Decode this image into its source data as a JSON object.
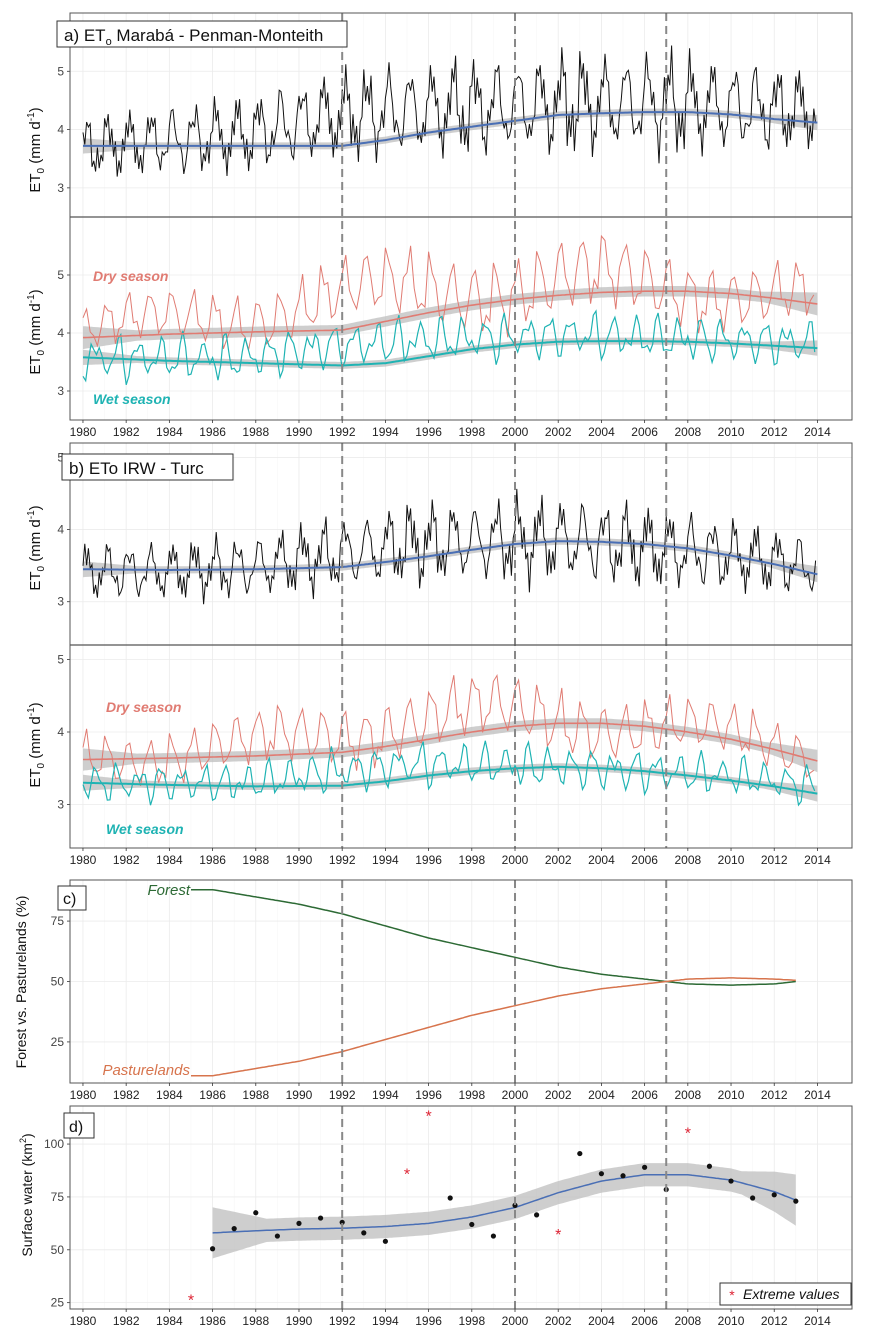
{
  "colors": {
    "obs": "#111111",
    "trend": "#4a6fb5",
    "dry": "#e07b72",
    "wet": "#1fb3b3",
    "band": "#bdbdbd",
    "forest": "#2d6a35",
    "pasture": "#d7744d",
    "extreme": "#dd2233",
    "vline": "#888888",
    "grid": "#ebebeb"
  },
  "chart_data": [
    {
      "id": "a_top",
      "type": "line",
      "label": "a) ET",
      "label_sub": "o",
      "label_rest": " Marabá - Penman-Monteith",
      "ylabel": "ET",
      "ylabel_sub": "0",
      "ylabel_unit": " (mm d",
      "ylabel_sup": "-1",
      "ylabel_close": ")",
      "ylim": [
        2.5,
        6.0
      ],
      "yticks": [
        "3",
        "4",
        "5"
      ],
      "series": [
        {
          "name": "ETo",
          "pattern": {
            "base": [
              3.6,
              3.7,
              3.8,
              4.1,
              4.2,
              4.25,
              4.3,
              4.3,
              4.25,
              4.2
            ],
            "amp": [
              0.8,
              0.9,
              1.0,
              1.1,
              1.2,
              1.25,
              1.3,
              1.3,
              1.2,
              1.0
            ]
          }
        },
        {
          "name": "LOESS trend",
          "points": [
            [
              1980,
              3.72
            ],
            [
              1984,
              3.72
            ],
            [
              1988,
              3.72
            ],
            [
              1992,
              3.72
            ],
            [
              1994,
              3.82
            ],
            [
              1996,
              3.95
            ],
            [
              1998,
              4.05
            ],
            [
              2000,
              4.15
            ],
            [
              2002,
              4.25
            ],
            [
              2004,
              4.28
            ],
            [
              2006,
              4.3
            ],
            [
              2008,
              4.3
            ],
            [
              2010,
              4.26
            ],
            [
              2012,
              4.18
            ],
            [
              2014,
              4.12
            ]
          ]
        }
      ]
    },
    {
      "id": "a_bottom",
      "type": "line",
      "ylim": [
        2.5,
        6.0
      ],
      "yticks": [
        "3",
        "4",
        "5"
      ],
      "annotations": [
        "Dry season",
        "Wet season"
      ],
      "series": [
        {
          "name": "Dry season",
          "pattern": {
            "base": [
              4.0,
              4.1,
              4.2,
              4.5,
              4.6,
              4.7,
              4.75,
              4.7,
              4.65,
              4.5
            ],
            "amp": [
              0.7,
              0.8,
              0.9,
              1.0,
              1.1,
              1.2,
              1.2,
              1.1,
              1.0,
              0.9
            ]
          }
        },
        {
          "name": "Dry trend",
          "points": [
            [
              1980,
              3.92
            ],
            [
              1984,
              3.98
            ],
            [
              1988,
              4.02
            ],
            [
              1992,
              4.05
            ],
            [
              1994,
              4.2
            ],
            [
              1996,
              4.35
            ],
            [
              1998,
              4.48
            ],
            [
              2000,
              4.58
            ],
            [
              2002,
              4.65
            ],
            [
              2004,
              4.7
            ],
            [
              2006,
              4.72
            ],
            [
              2008,
              4.72
            ],
            [
              2010,
              4.68
            ],
            [
              2012,
              4.6
            ],
            [
              2014,
              4.5
            ]
          ]
        },
        {
          "name": "Wet season",
          "pattern": {
            "base": [
              3.5,
              3.5,
              3.5,
              3.7,
              3.8,
              3.85,
              3.9,
              3.85,
              3.8,
              3.75
            ],
            "amp": [
              0.6,
              0.6,
              0.6,
              0.6,
              0.6,
              0.6,
              0.6,
              0.6,
              0.6,
              0.6
            ]
          }
        },
        {
          "name": "Wet trend",
          "points": [
            [
              1980,
              3.58
            ],
            [
              1984,
              3.52
            ],
            [
              1988,
              3.48
            ],
            [
              1992,
              3.44
            ],
            [
              1994,
              3.48
            ],
            [
              1996,
              3.6
            ],
            [
              1998,
              3.72
            ],
            [
              2000,
              3.8
            ],
            [
              2002,
              3.85
            ],
            [
              2004,
              3.86
            ],
            [
              2006,
              3.86
            ],
            [
              2008,
              3.85
            ],
            [
              2010,
              3.82
            ],
            [
              2012,
              3.78
            ],
            [
              2014,
              3.74
            ]
          ]
        }
      ]
    },
    {
      "id": "b_top",
      "type": "line",
      "label": "b) ETo IRW - Turc",
      "ylabel": "ET",
      "ylabel_sub": "0",
      "ylabel_unit": " (mm d",
      "ylabel_sup": "-1",
      "ylabel_close": ")",
      "ylim": [
        2.4,
        5.2
      ],
      "yticks": [
        "3",
        "4",
        "5"
      ],
      "series": [
        {
          "name": "ETo",
          "pattern": {
            "base": [
              3.35,
              3.35,
              3.4,
              3.55,
              3.7,
              3.75,
              3.75,
              3.65,
              3.55,
              3.4
            ],
            "amp": [
              0.6,
              0.6,
              0.65,
              0.75,
              0.85,
              0.85,
              0.9,
              0.85,
              0.75,
              0.6
            ]
          }
        },
        {
          "name": "LOESS trend",
          "points": [
            [
              1980,
              3.45
            ],
            [
              1984,
              3.44
            ],
            [
              1988,
              3.45
            ],
            [
              1992,
              3.48
            ],
            [
              1994,
              3.55
            ],
            [
              1996,
              3.63
            ],
            [
              1998,
              3.72
            ],
            [
              2000,
              3.8
            ],
            [
              2002,
              3.84
            ],
            [
              2004,
              3.83
            ],
            [
              2006,
              3.8
            ],
            [
              2008,
              3.74
            ],
            [
              2010,
              3.64
            ],
            [
              2012,
              3.52
            ],
            [
              2014,
              3.38
            ]
          ]
        }
      ]
    },
    {
      "id": "b_bottom",
      "type": "line",
      "ylim": [
        2.4,
        5.2
      ],
      "yticks": [
        "3",
        "4",
        "5"
      ],
      "annotations": [
        "Dry season",
        "Wet season"
      ],
      "series": [
        {
          "name": "Dry season",
          "pattern": {
            "base": [
              3.6,
              3.65,
              3.7,
              3.9,
              4.1,
              4.15,
              4.1,
              4.0,
              3.85,
              3.65
            ],
            "amp": [
              0.6,
              0.65,
              0.7,
              0.75,
              0.8,
              0.8,
              0.8,
              0.7,
              0.65,
              0.6
            ]
          }
        },
        {
          "name": "Dry trend",
          "points": [
            [
              1980,
              3.62
            ],
            [
              1984,
              3.64
            ],
            [
              1988,
              3.67
            ],
            [
              1992,
              3.72
            ],
            [
              1994,
              3.8
            ],
            [
              1996,
              3.9
            ],
            [
              1998,
              4.0
            ],
            [
              2000,
              4.08
            ],
            [
              2002,
              4.12
            ],
            [
              2004,
              4.12
            ],
            [
              2006,
              4.08
            ],
            [
              2008,
              4.0
            ],
            [
              2010,
              3.9
            ],
            [
              2012,
              3.76
            ],
            [
              2014,
              3.6
            ]
          ]
        },
        {
          "name": "Wet season",
          "pattern": {
            "base": [
              3.25,
              3.25,
              3.25,
              3.4,
              3.5,
              3.5,
              3.45,
              3.4,
              3.35,
              3.2
            ],
            "amp": [
              0.4,
              0.4,
              0.4,
              0.45,
              0.45,
              0.45,
              0.45,
              0.45,
              0.4,
              0.4
            ]
          }
        },
        {
          "name": "Wet trend",
          "points": [
            [
              1980,
              3.3
            ],
            [
              1984,
              3.27
            ],
            [
              1988,
              3.25
            ],
            [
              1992,
              3.26
            ],
            [
              1994,
              3.32
            ],
            [
              1996,
              3.4
            ],
            [
              1998,
              3.46
            ],
            [
              2000,
              3.5
            ],
            [
              2002,
              3.52
            ],
            [
              2004,
              3.5
            ],
            [
              2006,
              3.46
            ],
            [
              2008,
              3.4
            ],
            [
              2010,
              3.33
            ],
            [
              2012,
              3.25
            ],
            [
              2014,
              3.15
            ]
          ]
        }
      ]
    },
    {
      "id": "c",
      "type": "line",
      "label": "c)",
      "ylabel": "Forest vs. Pasturelands (%)",
      "ylim": [
        8,
        92
      ],
      "yticks": [
        "25",
        "50",
        "75"
      ],
      "series": [
        {
          "name": "Forest",
          "points": [
            [
              1985,
              88
            ],
            [
              1986,
              88
            ],
            [
              1988,
              85
            ],
            [
              1990,
              82
            ],
            [
              1992,
              78
            ],
            [
              1994,
              73
            ],
            [
              1996,
              68
            ],
            [
              1998,
              64
            ],
            [
              2000,
              60
            ],
            [
              2002,
              56
            ],
            [
              2004,
              53
            ],
            [
              2006,
              51
            ],
            [
              2007,
              50
            ],
            [
              2008,
              49
            ],
            [
              2010,
              48.5
            ],
            [
              2012,
              49
            ],
            [
              2013,
              50
            ]
          ]
        },
        {
          "name": "Pasturelands",
          "points": [
            [
              1985,
              11
            ],
            [
              1986,
              11
            ],
            [
              1988,
              14
            ],
            [
              1990,
              17
            ],
            [
              1992,
              21
            ],
            [
              1994,
              26
            ],
            [
              1996,
              31
            ],
            [
              1998,
              36
            ],
            [
              2000,
              40
            ],
            [
              2002,
              44
            ],
            [
              2004,
              47
            ],
            [
              2006,
              49
            ],
            [
              2007,
              50
            ],
            [
              2008,
              51
            ],
            [
              2010,
              51.5
            ],
            [
              2012,
              51
            ],
            [
              2013,
              50.5
            ]
          ]
        }
      ]
    },
    {
      "id": "d",
      "type": "scatter",
      "label": "d)",
      "ylabel": "Surface water (km",
      "ylabel_sup": "2",
      "ylabel_close": ")",
      "ylim": [
        22,
        118
      ],
      "yticks": [
        "25",
        "50",
        "75",
        "100"
      ],
      "series": [
        {
          "name": "Surface water",
          "points": [
            [
              1986,
              50.5
            ],
            [
              1987,
              60
            ],
            [
              1988,
              67.5
            ],
            [
              1989,
              56.5
            ],
            [
              1990,
              62.5
            ],
            [
              1991,
              65
            ],
            [
              1992,
              63
            ],
            [
              1993,
              58
            ],
            [
              1994,
              54
            ],
            [
              1997,
              74.5
            ],
            [
              1998,
              62
            ],
            [
              1999,
              56.5
            ],
            [
              2000,
              71
            ],
            [
              2001,
              66.5
            ],
            [
              2003,
              95.5
            ],
            [
              2004,
              86
            ],
            [
              2005,
              85
            ],
            [
              2006,
              89
            ],
            [
              2007,
              78.5
            ],
            [
              2009,
              89.5
            ],
            [
              2010,
              82.5
            ],
            [
              2011,
              74.5
            ],
            [
              2012,
              76
            ],
            [
              2013,
              73
            ]
          ]
        },
        {
          "name": "Extreme values",
          "points": [
            [
              1985,
              27
            ],
            [
              1995,
              86.5
            ],
            [
              1996,
              114
            ],
            [
              2002,
              58
            ],
            [
              2008,
              106
            ]
          ]
        },
        {
          "name": "LOESS trend",
          "points": [
            [
              1986,
              58
            ],
            [
              1988,
              59
            ],
            [
              1990,
              59.8
            ],
            [
              1992,
              60.2
            ],
            [
              1994,
              61
            ],
            [
              1996,
              62.5
            ],
            [
              1998,
              65.5
            ],
            [
              2000,
              70
            ],
            [
              2002,
              77
            ],
            [
              2004,
              82.5
            ],
            [
              2006,
              85.5
            ],
            [
              2008,
              85.5
            ],
            [
              2010,
              83
            ],
            [
              2012,
              77.5
            ],
            [
              2013,
              73.5
            ]
          ]
        }
      ],
      "legend": "Extreme values"
    }
  ],
  "xticks": [
    "1980",
    "1982",
    "1984",
    "1986",
    "1988",
    "1990",
    "1992",
    "1994",
    "1996",
    "1998",
    "2000",
    "2002",
    "2004",
    "2006",
    "2008",
    "2010",
    "2012",
    "2014"
  ],
  "xlim": [
    1979.4,
    2015.6
  ],
  "vlines": [
    1992,
    2000,
    2007
  ]
}
